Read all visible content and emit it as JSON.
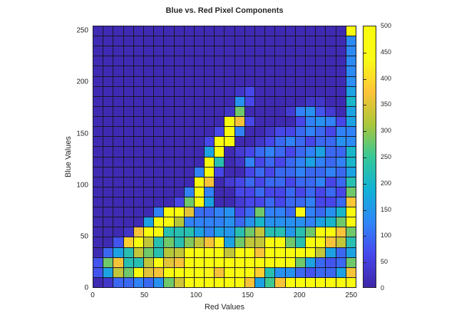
{
  "figure": {
    "title": "Blue vs. Red Pixel Components",
    "background_color": "#ffffff",
    "text_color": "#262626",
    "grid_line_color": "#151528"
  },
  "chart_data": {
    "type": "heatmap",
    "title": "Blue vs. Red Pixel Components",
    "xlabel": "Red Values",
    "ylabel": "Blue Values",
    "x_ticks": [
      0,
      50,
      100,
      150,
      200,
      250
    ],
    "y_ticks": [
      0,
      50,
      100,
      150,
      200,
      250
    ],
    "x_range": [
      0,
      255
    ],
    "y_range": [
      0,
      255
    ],
    "n_bins_x": 26,
    "n_bins_y": 26,
    "bin_width": 10,
    "grid": "cell borders on (dark)",
    "legend_position": "colorbar right",
    "colorbar": {
      "min": 0,
      "max": 500,
      "ticks": [
        0,
        50,
        100,
        150,
        200,
        250,
        300,
        350,
        400,
        450,
        500
      ]
    },
    "colormap": {
      "name": "parula",
      "stops": [
        "#3e26a8",
        "#4747eb",
        "#2e87f7",
        "#12b1d6",
        "#37c897",
        "#abc739",
        "#fec338",
        "#f9fb15",
        "#f9fb0e"
      ]
    },
    "rows_order": "top_to_bottom (blue bin 250-260 first, 0-10 last)",
    "counts": [
      [
        10,
        10,
        10,
        10,
        10,
        10,
        10,
        10,
        10,
        10,
        10,
        10,
        10,
        10,
        10,
        10,
        10,
        10,
        10,
        10,
        10,
        10,
        10,
        10,
        10,
        500
      ],
      [
        10,
        10,
        10,
        10,
        10,
        10,
        10,
        10,
        10,
        10,
        10,
        10,
        10,
        10,
        10,
        10,
        10,
        10,
        10,
        10,
        10,
        10,
        10,
        10,
        10,
        130
      ],
      [
        10,
        10,
        10,
        10,
        10,
        10,
        10,
        10,
        10,
        10,
        10,
        10,
        10,
        10,
        10,
        10,
        10,
        10,
        10,
        10,
        10,
        10,
        10,
        10,
        10,
        130
      ],
      [
        10,
        10,
        10,
        10,
        10,
        10,
        10,
        10,
        10,
        10,
        10,
        10,
        10,
        10,
        10,
        10,
        10,
        10,
        10,
        10,
        10,
        10,
        10,
        10,
        10,
        130
      ],
      [
        10,
        10,
        10,
        10,
        10,
        10,
        10,
        10,
        10,
        10,
        10,
        10,
        10,
        10,
        10,
        10,
        10,
        10,
        10,
        10,
        10,
        10,
        10,
        10,
        10,
        130
      ],
      [
        10,
        10,
        10,
        10,
        10,
        10,
        10,
        10,
        10,
        10,
        10,
        10,
        10,
        10,
        10,
        10,
        10,
        10,
        10,
        10,
        10,
        10,
        10,
        10,
        10,
        135
      ],
      [
        10,
        10,
        10,
        10,
        10,
        10,
        10,
        10,
        10,
        10,
        10,
        10,
        10,
        10,
        30,
        60,
        10,
        10,
        10,
        10,
        10,
        10,
        10,
        10,
        10,
        165
      ],
      [
        10,
        10,
        10,
        10,
        10,
        10,
        10,
        10,
        10,
        10,
        10,
        10,
        10,
        10,
        140,
        60,
        10,
        10,
        10,
        10,
        10,
        30,
        30,
        10,
        10,
        200
      ],
      [
        10,
        10,
        10,
        10,
        10,
        10,
        10,
        10,
        10,
        10,
        10,
        10,
        10,
        30,
        280,
        10,
        10,
        10,
        10,
        40,
        120,
        140,
        75,
        40,
        10,
        165
      ],
      [
        10,
        10,
        10,
        10,
        10,
        10,
        10,
        10,
        10,
        10,
        10,
        10,
        10,
        500,
        370,
        60,
        10,
        10,
        10,
        10,
        60,
        120,
        140,
        120,
        60,
        165
      ],
      [
        10,
        10,
        10,
        10,
        10,
        10,
        10,
        10,
        10,
        10,
        10,
        10,
        60,
        500,
        120,
        10,
        10,
        30,
        60,
        60,
        95,
        120,
        95,
        60,
        120,
        120
      ],
      [
        10,
        10,
        10,
        10,
        10,
        10,
        10,
        10,
        10,
        10,
        10,
        60,
        500,
        500,
        10,
        10,
        30,
        60,
        95,
        120,
        95,
        60,
        95,
        95,
        140,
        130
      ],
      [
        10,
        10,
        10,
        10,
        10,
        10,
        10,
        10,
        10,
        10,
        10,
        165,
        500,
        10,
        40,
        60,
        95,
        120,
        95,
        60,
        95,
        120,
        165,
        95,
        95,
        200
      ],
      [
        10,
        10,
        10,
        10,
        10,
        10,
        10,
        10,
        10,
        10,
        10,
        500,
        225,
        10,
        30,
        120,
        60,
        95,
        60,
        95,
        120,
        165,
        120,
        95,
        120,
        200
      ],
      [
        10,
        10,
        10,
        10,
        10,
        10,
        10,
        10,
        10,
        10,
        120,
        500,
        60,
        10,
        10,
        60,
        95,
        60,
        95,
        95,
        120,
        95,
        95,
        120,
        95,
        165
      ],
      [
        10,
        10,
        10,
        10,
        10,
        10,
        10,
        10,
        10,
        10,
        500,
        370,
        10,
        40,
        60,
        95,
        60,
        95,
        95,
        60,
        95,
        95,
        120,
        60,
        95,
        225
      ],
      [
        10,
        10,
        10,
        10,
        10,
        10,
        10,
        10,
        10,
        120,
        500,
        120,
        10,
        10,
        60,
        60,
        95,
        60,
        60,
        95,
        60,
        95,
        60,
        95,
        60,
        280
      ],
      [
        10,
        10,
        10,
        10,
        10,
        10,
        10,
        10,
        60,
        280,
        500,
        165,
        10,
        10,
        40,
        60,
        60,
        95,
        60,
        95,
        95,
        120,
        60,
        60,
        95,
        380
      ],
      [
        10,
        10,
        10,
        10,
        10,
        10,
        120,
        500,
        500,
        355,
        100,
        95,
        120,
        140,
        60,
        95,
        280,
        120,
        120,
        95,
        460,
        120,
        95,
        140,
        200,
        500
      ],
      [
        10,
        10,
        10,
        10,
        10,
        165,
        500,
        500,
        320,
        120,
        120,
        120,
        120,
        140,
        95,
        140,
        200,
        140,
        140,
        140,
        140,
        120,
        165,
        200,
        280,
        500
      ],
      [
        10,
        10,
        10,
        30,
        370,
        500,
        500,
        225,
        225,
        225,
        165,
        120,
        165,
        150,
        225,
        280,
        330,
        225,
        225,
        150,
        225,
        280,
        500,
        500,
        370,
        280
      ],
      [
        10,
        10,
        75,
        390,
        500,
        330,
        225,
        280,
        225,
        290,
        330,
        370,
        430,
        165,
        280,
        330,
        330,
        500,
        500,
        280,
        225,
        500,
        500,
        370,
        330,
        225
      ],
      [
        10,
        95,
        165,
        225,
        330,
        280,
        225,
        320,
        330,
        500,
        500,
        500,
        500,
        330,
        500,
        500,
        370,
        500,
        500,
        500,
        500,
        500,
        330,
        165,
        95,
        165
      ],
      [
        75,
        280,
        370,
        225,
        225,
        330,
        460,
        355,
        370,
        500,
        500,
        500,
        500,
        500,
        500,
        500,
        500,
        500,
        500,
        500,
        280,
        165,
        95,
        75,
        95,
        280
      ],
      [
        75,
        165,
        330,
        280,
        500,
        355,
        370,
        500,
        500,
        500,
        500,
        430,
        370,
        500,
        500,
        500,
        390,
        225,
        140,
        140,
        95,
        75,
        95,
        95,
        165,
        370
      ],
      [
        10,
        30,
        95,
        95,
        120,
        95,
        140,
        280,
        340,
        500,
        500,
        500,
        500,
        500,
        500,
        370,
        165,
        255,
        370,
        500,
        500,
        500,
        500,
        500,
        500,
        500
      ]
    ]
  }
}
